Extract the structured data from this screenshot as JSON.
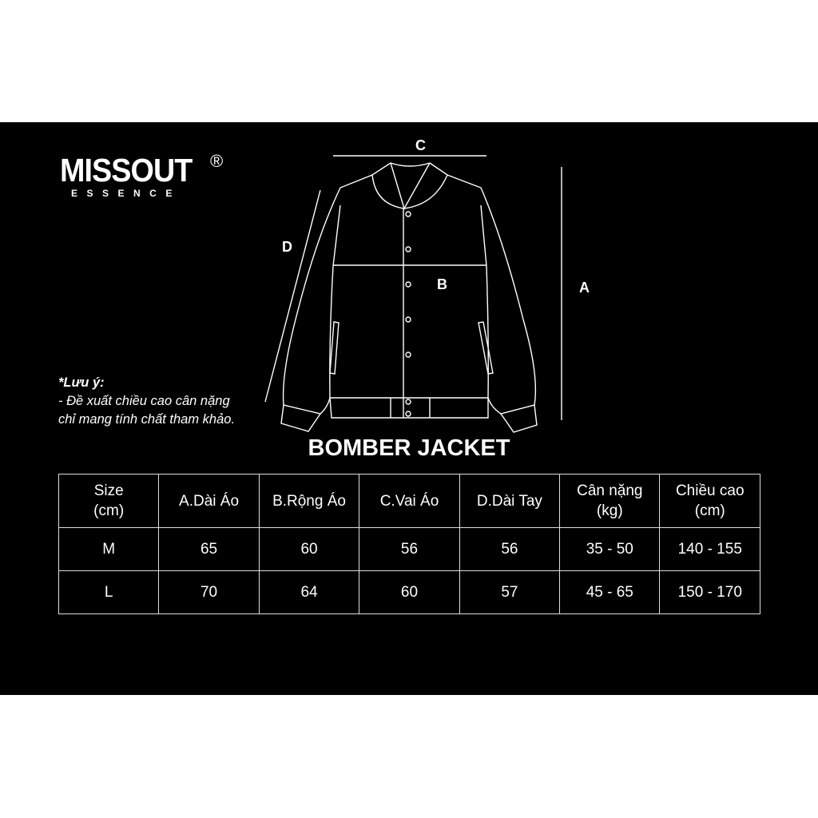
{
  "brand": {
    "name": "MISSOUT",
    "registered": "®",
    "tagline": "ESSENCE"
  },
  "diagram_labels": {
    "a": "A",
    "b": "B",
    "c": "C",
    "d": "D"
  },
  "note": {
    "heading": "*Lưu ý:",
    "line1": "- Đề xuất chiều cao cân nặng",
    "line2": "chỉ mang tính chất tham khảo."
  },
  "product_title": "BOMBER JACKET",
  "table": {
    "headers": [
      [
        "Size",
        "(cm)"
      ],
      [
        "A.Dài Áo",
        ""
      ],
      [
        "B.Rộng Áo",
        ""
      ],
      [
        "C.Vai Áo",
        ""
      ],
      [
        "D.Dài Tay",
        ""
      ],
      [
        "Cân nặng",
        "(kg)"
      ],
      [
        "Chiều cao",
        "(cm)"
      ]
    ],
    "rows": [
      [
        "M",
        "65",
        "60",
        "56",
        "56",
        "35 - 50",
        "140 - 155"
      ],
      [
        "L",
        "70",
        "64",
        "60",
        "57",
        "45 - 65",
        "150 - 170"
      ]
    ]
  },
  "colors": {
    "background": "#000000",
    "foreground": "#ffffff"
  }
}
